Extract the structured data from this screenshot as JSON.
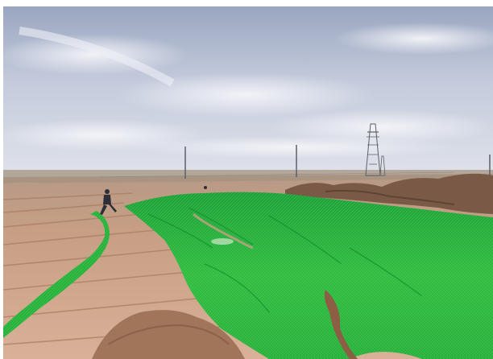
{
  "scene": {
    "sky_color": "#c9d2e2",
    "cloud_color": "#e8ecf4",
    "ground_color": "#c79a7d",
    "net_color": "#2fbf3a"
  }
}
